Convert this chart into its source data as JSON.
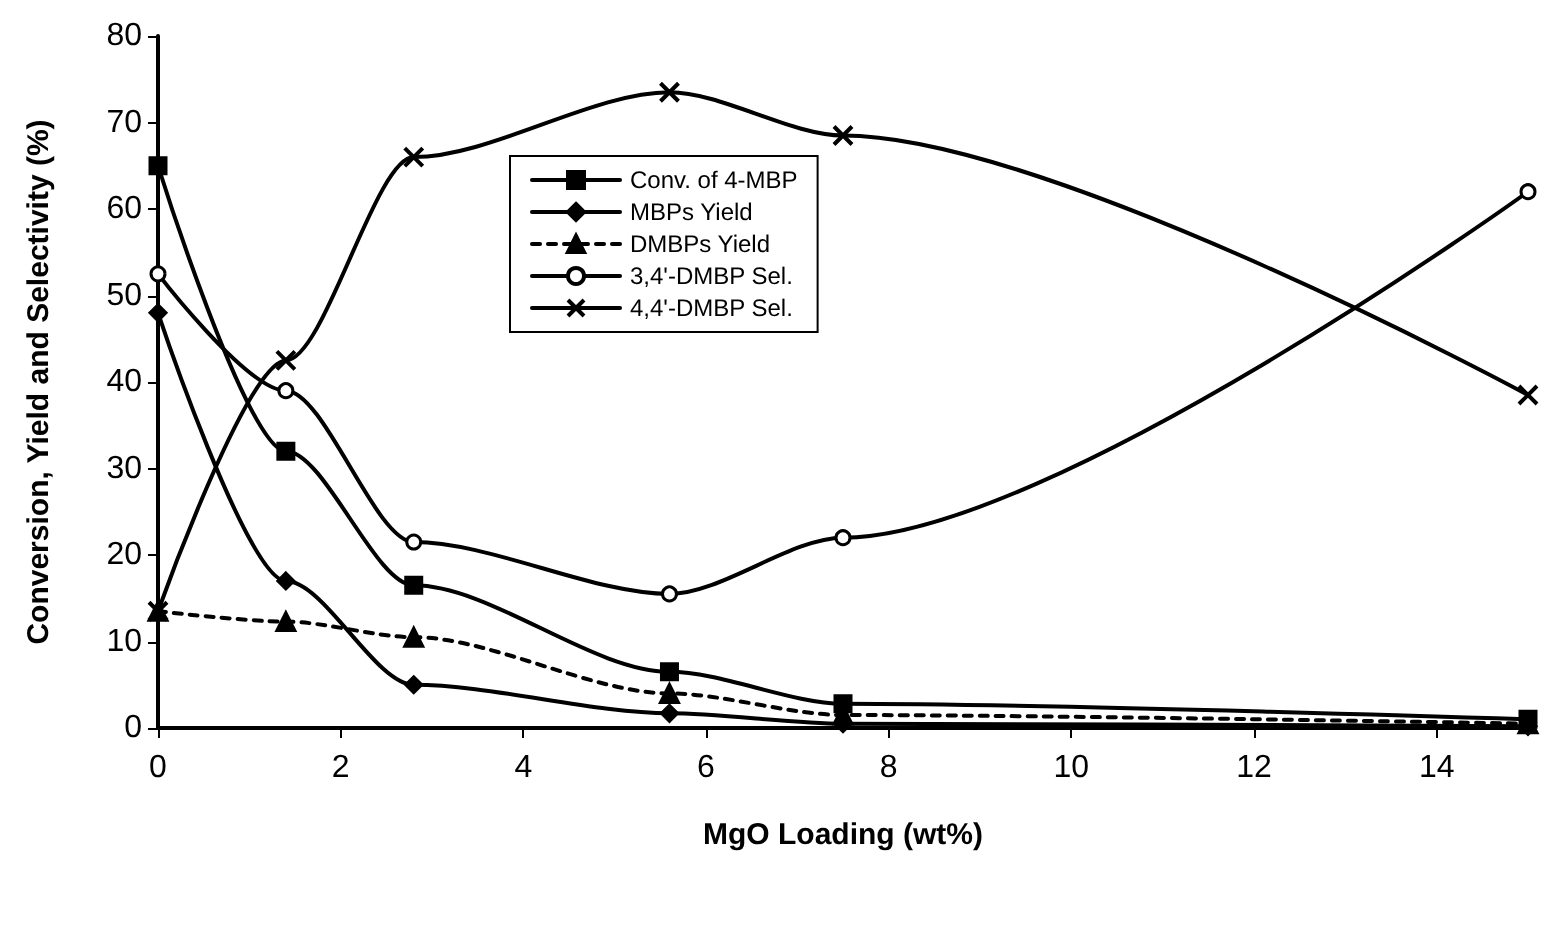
{
  "chart_data": {
    "type": "line",
    "xlabel": "MgO Loading (wt%)",
    "ylabel": "Conversion, Yield and Selectivity (%)",
    "x": [
      0,
      1.4,
      2.8,
      5.6,
      7.5,
      15
    ],
    "xlim": [
      0,
      15
    ],
    "xticks": [
      0,
      2,
      4,
      6,
      8,
      10,
      12,
      14
    ],
    "ylim": [
      0,
      80
    ],
    "yticks": [
      0,
      10,
      20,
      30,
      40,
      50,
      60,
      70,
      80
    ],
    "grid": false,
    "legend": "top",
    "series": [
      {
        "name": "Conv. of 4-MBP",
        "color": "#000000",
        "marker": "square",
        "line_style": "solid",
        "values": [
          65,
          32,
          16.5,
          6.5,
          2.8,
          1
        ]
      },
      {
        "name": "MBPs Yield",
        "color": "#000000",
        "marker": "diamond",
        "line_style": "solid",
        "values": [
          48,
          17,
          5,
          1.7,
          0.5,
          0.2
        ]
      },
      {
        "name": "DMBPs Yield",
        "color": "#000000",
        "marker": "triangle",
        "line_style": "dashed",
        "values": [
          13.5,
          12.3,
          10.5,
          4,
          1.5,
          0.5
        ]
      },
      {
        "name": "3,4'-DMBP Sel.",
        "color": "#000000",
        "marker": "circle",
        "line_style": "solid",
        "values": [
          52.5,
          39,
          21.5,
          15.5,
          22,
          62
        ]
      },
      {
        "name": "4,4'-DMBP Sel.",
        "color": "#000000",
        "marker": "cross",
        "line_style": "solid",
        "values": [
          13.5,
          42.5,
          66,
          73.5,
          68.5,
          38.5
        ]
      }
    ]
  }
}
